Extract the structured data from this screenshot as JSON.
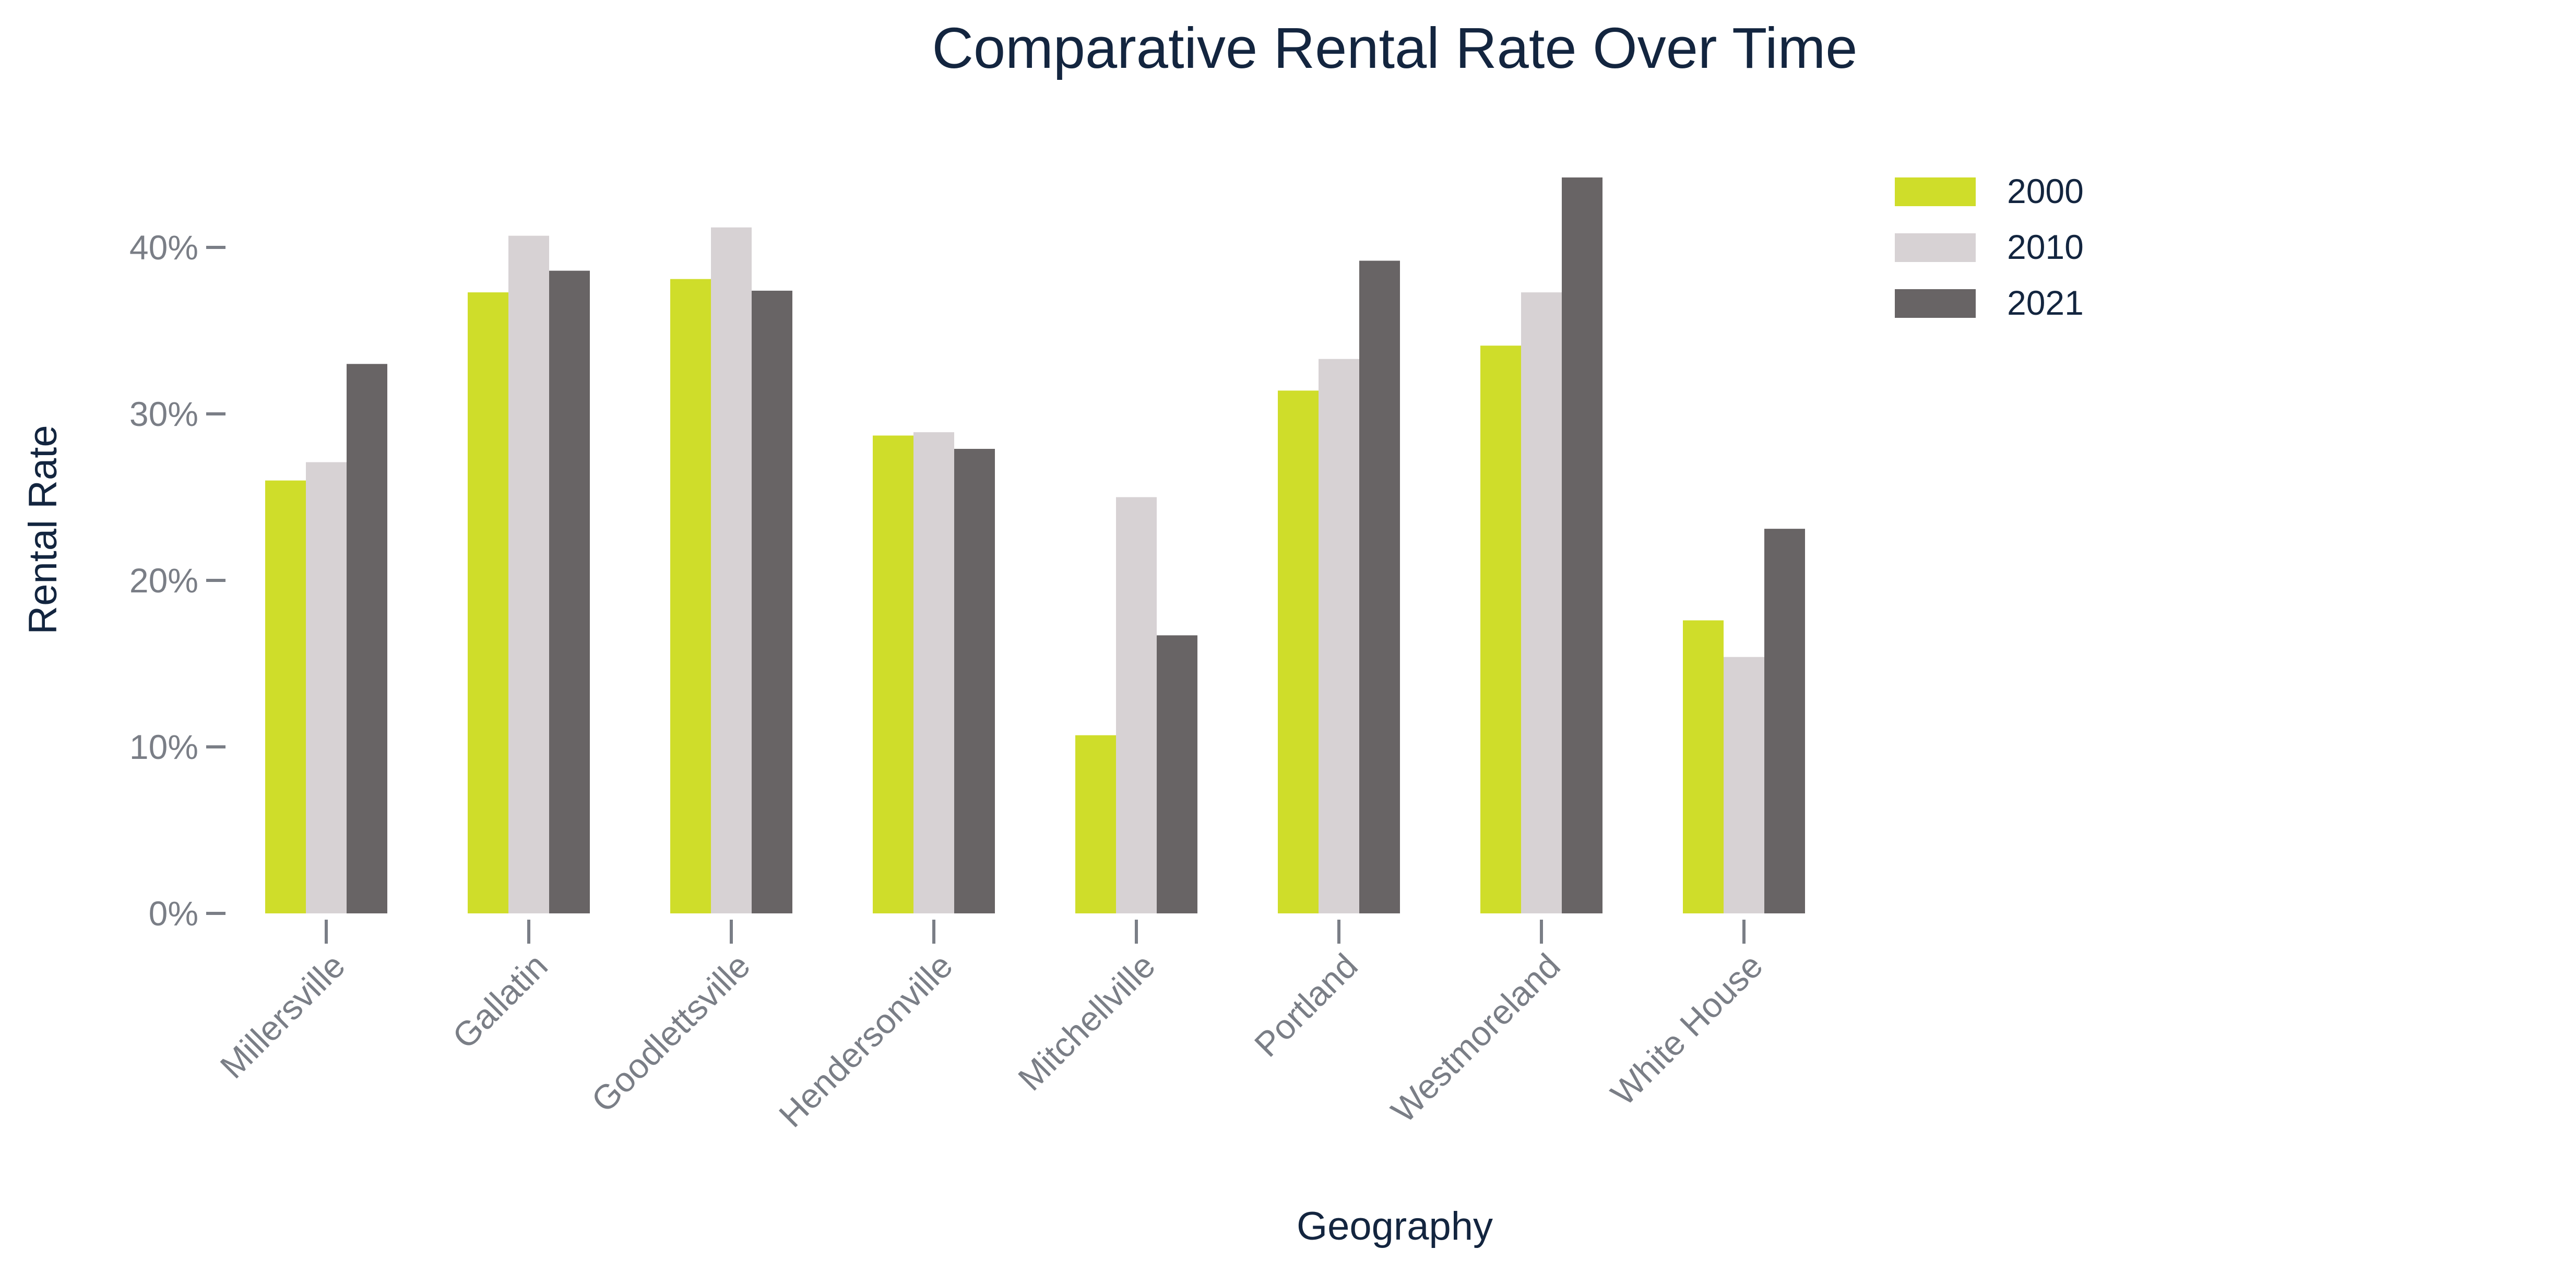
{
  "chart_data": {
    "type": "bar",
    "title": "Comparative Rental Rate Over Time",
    "xlabel": "Geography",
    "ylabel": "Rental Rate",
    "categories": [
      "Millersville",
      "Gallatin",
      "Goodlettsville",
      "Hendersonville",
      "Mitchellville",
      "Portland",
      "Westmoreland",
      "White House"
    ],
    "series": [
      {
        "name": "2000",
        "color": "#cfdd2a",
        "values": [
          0.26,
          0.373,
          0.381,
          0.287,
          0.107,
          0.314,
          0.341,
          0.176
        ]
      },
      {
        "name": "2010",
        "color": "#d7d2d4",
        "values": [
          0.271,
          0.407,
          0.412,
          0.289,
          0.25,
          0.333,
          0.373,
          0.154
        ]
      },
      {
        "name": "2021",
        "color": "#686465",
        "values": [
          0.33,
          0.386,
          0.374,
          0.279,
          0.167,
          0.392,
          0.442,
          0.231
        ]
      }
    ],
    "ylim": [
      0,
      0.46
    ],
    "yticks": [
      0,
      0.1,
      0.2,
      0.3,
      0.4
    ],
    "ytick_labels": [
      "0%",
      "10%",
      "20%",
      "30%",
      "40%"
    ],
    "grid": false,
    "legend": "top-right"
  }
}
